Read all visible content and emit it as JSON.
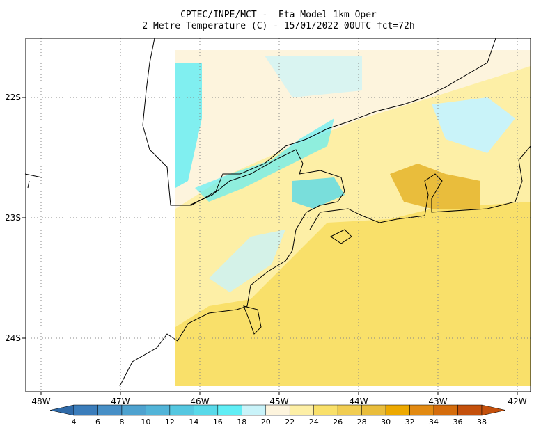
{
  "header": {
    "title_line1": "CPTEC/INPE/MCT -  Eta Model 1km Oper",
    "title_line2": "2 Metre Temperature (C) - 15/01/2022 00UTC fct=72h"
  },
  "axes": {
    "lat_labels": [
      "22S",
      "23S",
      "24S"
    ],
    "lon_labels": [
      "48W",
      "47W",
      "46W",
      "45W",
      "44W",
      "43W",
      "42W"
    ]
  },
  "colorbar": {
    "labels": [
      "4",
      "6",
      "8",
      "10",
      "12",
      "14",
      "16",
      "18",
      "20",
      "22",
      "24",
      "26",
      "28",
      "30",
      "32",
      "34",
      "36",
      "38"
    ],
    "colors": [
      "#2f6aa8",
      "#3b7dbb",
      "#478fc6",
      "#4ea2cf",
      "#52b4d8",
      "#55c7e0",
      "#58d9e9",
      "#60eef5",
      "#c9f3f9",
      "#fdf4dd",
      "#fdefa6",
      "#f9e06a",
      "#f1cd52",
      "#e9bd3c",
      "#eda900",
      "#e28a12",
      "#d46c0c",
      "#c4500c",
      "#c4500c"
    ]
  }
}
